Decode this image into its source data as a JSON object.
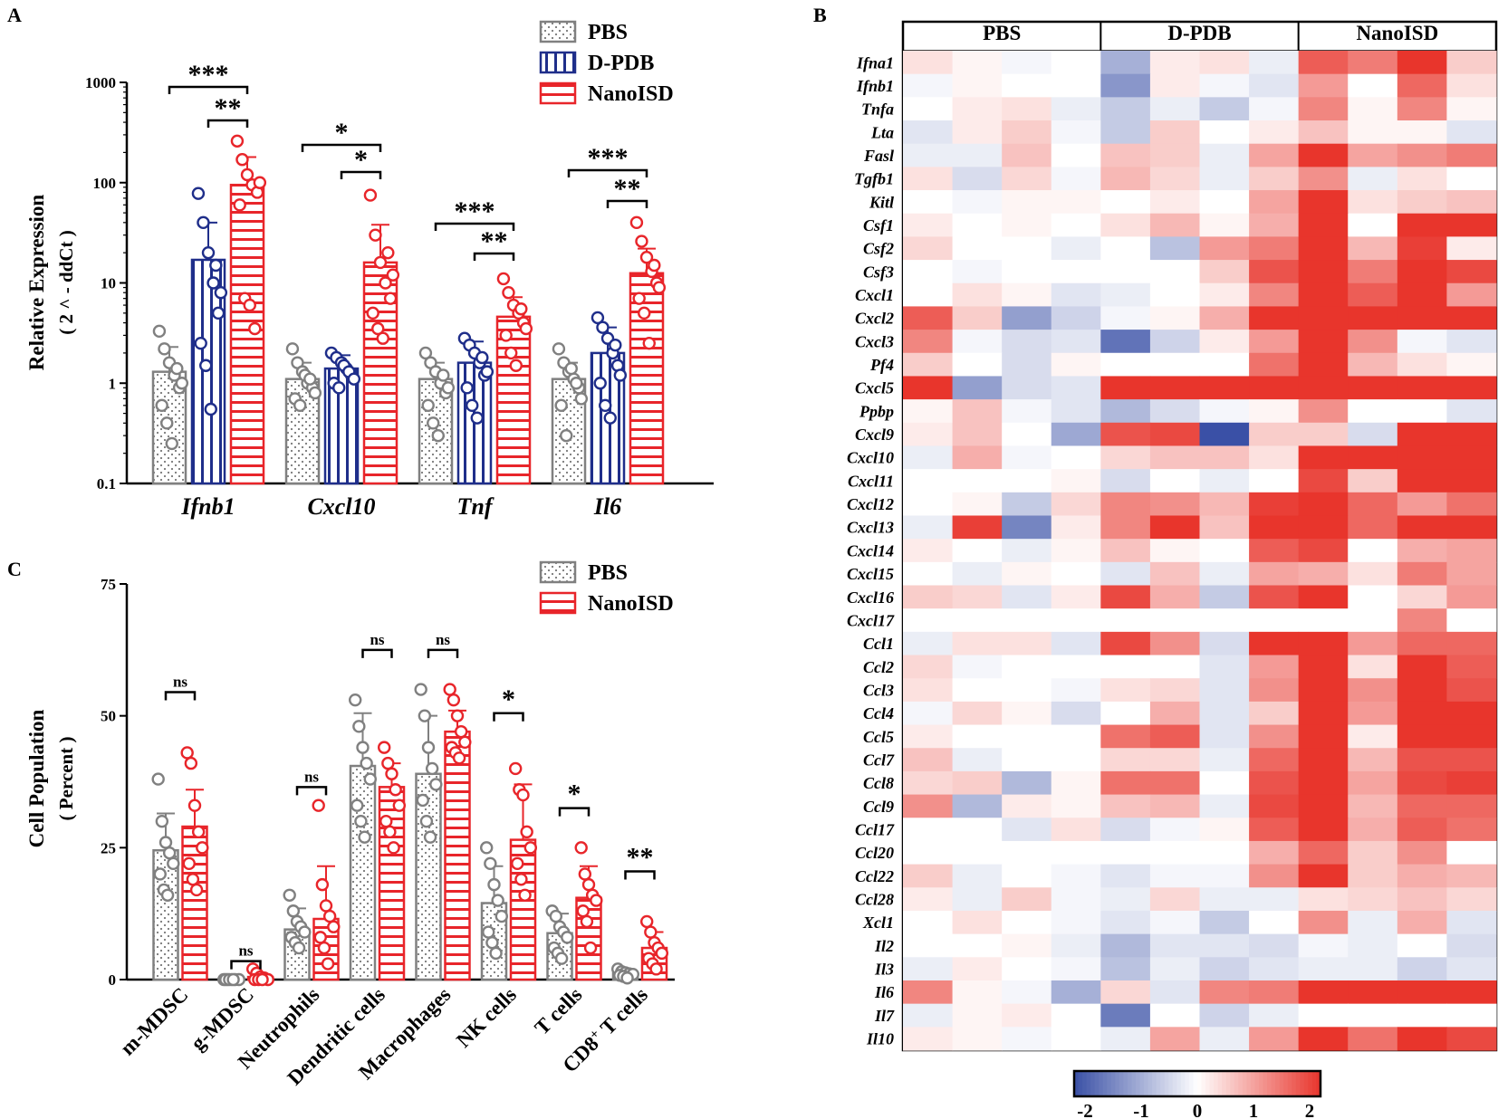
{
  "panel_labels": {
    "a": "A",
    "b": "B",
    "c": "C"
  },
  "chart_data": [
    {
      "panel": "A",
      "type": "bar",
      "scale": "log",
      "ylabel_line1": "Relative Expression",
      "ylabel_line2": "( 2 ^ - ddCt )",
      "ylim": [
        0.1,
        1000
      ],
      "yticks": [
        "0.1",
        "1",
        "10",
        "100",
        "1000"
      ],
      "yticks_values": [
        0.1,
        1,
        10,
        100,
        1000
      ],
      "categories": [
        "Ifnb1",
        "Cxcl10",
        "Tnf",
        "Il6"
      ],
      "series": [
        {
          "name": "PBS",
          "color": "#808080",
          "pattern": "dots",
          "values": [
            1.3,
            1.1,
            1.1,
            1.1
          ],
          "err": [
            2.3,
            1.6,
            1.6,
            1.6
          ],
          "points": [
            [
              3.3,
              2.2,
              1.6,
              1.2,
              0.9,
              0.6,
              0.4,
              0.25,
              1.4,
              1.0
            ],
            [
              2.2,
              1.6,
              1.3,
              1.0,
              0.9,
              0.7,
              0.6,
              1.2,
              1.1,
              0.8
            ],
            [
              2.0,
              1.6,
              1.3,
              1.0,
              0.8,
              0.6,
              0.4,
              0.3,
              1.2,
              0.9
            ],
            [
              2.2,
              1.6,
              1.3,
              1.1,
              0.9,
              0.6,
              0.3,
              1.4,
              1.0,
              0.7
            ]
          ]
        },
        {
          "name": "D-PDB",
          "color": "#1f2e8a",
          "pattern": "vlines",
          "values": [
            17,
            1.4,
            1.6,
            2.0
          ],
          "err": [
            40,
            1.9,
            2.6,
            3.6
          ],
          "points": [
            [
              78,
              40,
              20,
              10,
              5,
              2.5,
              1.5,
              0.55,
              15,
              8
            ],
            [
              2.0,
              1.8,
              1.6,
              1.4,
              1.2,
              1.0,
              0.9,
              1.5,
              1.3,
              1.1
            ],
            [
              2.8,
              2.4,
              2.0,
              1.6,
              1.2,
              0.9,
              0.6,
              0.45,
              1.8,
              1.3
            ],
            [
              4.5,
              3.6,
              2.8,
              2.0,
              1.5,
              1.0,
              0.6,
              0.45,
              2.4,
              1.2
            ]
          ]
        },
        {
          "name": "NanoISD",
          "color": "#e8252a",
          "pattern": "hlines",
          "values": [
            95,
            16,
            4.6,
            12.5
          ],
          "err": [
            180,
            38,
            7.2,
            22
          ],
          "points": [
            [
              260,
              170,
              120,
              95,
              80,
              60,
              7,
              6,
              3.5,
              100
            ],
            [
              75,
              30,
              16,
              10,
              7,
              5,
              3.5,
              2.8,
              20,
              12
            ],
            [
              11,
              8,
              6,
              5,
              4,
              3,
              2,
              1.5,
              5.5,
              3.5
            ],
            [
              40,
              26,
              18,
              13,
              10,
              7,
              5,
              2.5,
              15,
              9
            ]
          ]
        }
      ],
      "significance": [
        {
          "category": "Ifnb1",
          "wide": "***",
          "narrow": "**"
        },
        {
          "category": "Cxcl10",
          "wide": "*",
          "narrow": "*"
        },
        {
          "category": "Tnf",
          "wide": "***",
          "narrow": "**"
        },
        {
          "category": "Il6",
          "wide": "***",
          "narrow": "**"
        }
      ],
      "legend": [
        "PBS",
        "D-PDB",
        "NanoISD"
      ],
      "legend_position": "top-right"
    },
    {
      "panel": "C",
      "type": "bar",
      "ylabel_line1": "Cell Population",
      "ylabel_line2": "( Percent )",
      "ylim": [
        0,
        75
      ],
      "yticks": [
        "0",
        "25",
        "50",
        "75"
      ],
      "yticks_values": [
        0,
        25,
        50,
        75
      ],
      "categories": [
        "m-MDSC",
        "g-MDSC",
        "Neutrophils",
        "Dendritic cells",
        "Macrophages",
        "NK cells",
        "T cells",
        "CD8"
      ],
      "category_superscript": "+",
      "category_suffix": " T cells",
      "series": [
        {
          "name": "PBS",
          "color": "#808080",
          "pattern": "dots",
          "values": [
            24.5,
            0.1,
            9.5,
            40.5,
            39,
            14.5,
            8.8,
            1.2
          ],
          "err": [
            31.5,
            0.2,
            13.5,
            50.5,
            50,
            21.5,
            12.5,
            2.0
          ],
          "points": [
            [
              38,
              30,
              26,
              24,
              22,
              20,
              17,
              16
            ],
            [
              0,
              0,
              0,
              0,
              0,
              0,
              0,
              0
            ],
            [
              16,
              13,
              11,
              10,
              9,
              8,
              7,
              6
            ],
            [
              53,
              48,
              44,
              41,
              38,
              33,
              30,
              27
            ],
            [
              55,
              50,
              44,
              40,
              37,
              34,
              30,
              27
            ],
            [
              25,
              22,
              18,
              15,
              12,
              9,
              7,
              5
            ],
            [
              13,
              12,
              10,
              9,
              8,
              6,
              5,
              4
            ],
            [
              2,
              1.5,
              1.3,
              1.1,
              1.0,
              0.8,
              0.6,
              0.3
            ]
          ]
        },
        {
          "name": "NanoISD",
          "color": "#e8252a",
          "pattern": "hlines",
          "values": [
            29,
            0.5,
            11.5,
            36.5,
            47,
            26.5,
            15.5,
            6.0
          ],
          "err": [
            36,
            1.0,
            21.5,
            41,
            51,
            37,
            21.5,
            9.0
          ],
          "points": [
            [
              43,
              41,
              33,
              28,
              25,
              22,
              19,
              17
            ],
            [
              2,
              1.2,
              0.5,
              0.3,
              0,
              0,
              0,
              0
            ],
            [
              33,
              18,
              14,
              12,
              10,
              8,
              6,
              3
            ],
            [
              44,
              41,
              39,
              36,
              33,
              30,
              28,
              25
            ],
            [
              55,
              53,
              50,
              47,
              45,
              44,
              43,
              42
            ],
            [
              40,
              36,
              35,
              28,
              25,
              22,
              19,
              16
            ],
            [
              25,
              20,
              18,
              16,
              15,
              13,
              11,
              6
            ],
            [
              11,
              9,
              7,
              6,
              5,
              4,
              3,
              2
            ]
          ]
        }
      ],
      "significance": [
        "ns",
        "ns",
        "ns",
        "ns",
        "ns",
        "*",
        "*",
        "**"
      ],
      "legend": [
        "PBS",
        "NanoISD"
      ],
      "legend_position": "top-right"
    },
    {
      "panel": "B",
      "type": "heatmap",
      "groups": [
        "PBS",
        "D-PDB",
        "NanoISD"
      ],
      "replicates_per_group": 4,
      "genes": [
        "Ifna1",
        "Ifnb1",
        "Tnfa",
        "Lta",
        "Fasl",
        "Tgfb1",
        "Kitl",
        "Csf1",
        "Csf2",
        "Csf3",
        "Cxcl1",
        "Cxcl2",
        "Cxcl3",
        "Pf4",
        "Cxcl5",
        "Ppbp",
        "Cxcl9",
        "Cxcl10",
        "Cxcl11",
        "Cxcl12",
        "Cxcl13",
        "Cxcl14",
        "Cxcl15",
        "Cxcl16",
        "Cxcl17",
        "Ccl1",
        "Ccl2",
        "Ccl3",
        "Ccl4",
        "Ccl5",
        "Ccl7",
        "Ccl8",
        "Ccl9",
        "Ccl17",
        "Ccl20",
        "Ccl22",
        "Ccl28",
        "Xcl1",
        "Il2",
        "Il3",
        "Il6",
        "Il7",
        "Il10"
      ],
      "colorbar": {
        "min": -2,
        "max": 2,
        "ticks": [
          "-2",
          "-1",
          "0",
          "1",
          "2"
        ],
        "low_color": "#3a50a6",
        "mid_color": "#ffffff",
        "high_color": "#e8352c"
      },
      "values": [
        [
          0.3,
          0.1,
          -0.1,
          0.0,
          -0.9,
          0.2,
          0.3,
          -0.2,
          1.6,
          1.3,
          2.0,
          0.5
        ],
        [
          -0.1,
          0.1,
          0.0,
          0.0,
          -1.2,
          0.2,
          -0.1,
          -0.3,
          1.0,
          0.0,
          1.5,
          0.3
        ],
        [
          0.0,
          0.2,
          0.3,
          -0.2,
          -0.6,
          -0.2,
          -0.6,
          -0.1,
          1.2,
          0.1,
          1.2,
          0.1
        ],
        [
          -0.3,
          0.2,
          0.5,
          -0.1,
          -0.6,
          0.5,
          0.0,
          0.2,
          0.6,
          0.1,
          0.1,
          -0.3
        ],
        [
          -0.2,
          -0.2,
          0.6,
          0.0,
          0.6,
          0.5,
          -0.2,
          0.9,
          2.0,
          0.9,
          1.1,
          1.3
        ],
        [
          0.3,
          -0.4,
          0.4,
          -0.1,
          0.7,
          0.4,
          -0.2,
          0.5,
          1.1,
          -0.2,
          0.3,
          0.0
        ],
        [
          0.0,
          -0.1,
          0.1,
          0.1,
          0.0,
          0.2,
          0.0,
          0.9,
          2.0,
          0.3,
          0.5,
          0.6
        ],
        [
          0.2,
          0.0,
          0.1,
          0.0,
          0.3,
          0.7,
          0.1,
          0.8,
          2.0,
          0.0,
          2.0,
          2.0
        ],
        [
          0.4,
          0.0,
          0.0,
          -0.2,
          0.0,
          -0.7,
          1.0,
          1.3,
          2.0,
          0.7,
          1.9,
          0.2
        ],
        [
          0.0,
          -0.1,
          0.0,
          0.0,
          0.0,
          0.0,
          0.5,
          1.7,
          2.0,
          1.3,
          2.0,
          1.8
        ],
        [
          0.0,
          0.3,
          0.1,
          -0.3,
          -0.2,
          0.0,
          0.2,
          1.2,
          2.0,
          1.6,
          2.0,
          1.0
        ],
        [
          1.6,
          0.5,
          -1.1,
          -0.5,
          -0.1,
          0.1,
          0.8,
          2.0,
          2.0,
          2.0,
          2.0,
          2.0
        ],
        [
          1.2,
          -0.1,
          -0.4,
          -0.3,
          -1.6,
          -0.5,
          0.2,
          1.0,
          2.0,
          1.1,
          -0.1,
          -0.3
        ],
        [
          0.5,
          0.0,
          -0.4,
          0.1,
          0.0,
          0.0,
          0.0,
          1.4,
          2.0,
          0.7,
          0.3,
          0.1
        ],
        [
          2.0,
          -1.1,
          -0.4,
          -0.3,
          2.0,
          2.0,
          2.0,
          2.0,
          2.0,
          2.0,
          2.0,
          2.0
        ],
        [
          0.1,
          0.6,
          -0.1,
          -0.3,
          -0.8,
          -0.4,
          -0.1,
          0.1,
          1.1,
          0.0,
          0.0,
          -0.3
        ],
        [
          0.2,
          0.6,
          0.0,
          -1.0,
          1.7,
          1.8,
          -2.0,
          0.5,
          0.5,
          -0.4,
          2.0,
          2.0
        ],
        [
          -0.2,
          0.8,
          -0.1,
          0.0,
          0.4,
          0.6,
          0.6,
          0.3,
          2.0,
          2.0,
          2.0,
          2.0
        ],
        [
          0.0,
          0.0,
          0.0,
          0.1,
          -0.4,
          0.0,
          -0.2,
          0.0,
          1.8,
          0.5,
          2.0,
          2.0
        ],
        [
          0.0,
          0.1,
          -0.6,
          0.4,
          1.2,
          1.1,
          0.7,
          1.9,
          2.0,
          1.5,
          1.0,
          1.4
        ],
        [
          -0.2,
          1.9,
          -1.4,
          0.2,
          1.2,
          2.0,
          0.6,
          2.0,
          2.0,
          1.5,
          2.0,
          2.0
        ],
        [
          0.2,
          0.0,
          -0.2,
          0.1,
          0.6,
          0.1,
          0.0,
          1.6,
          1.8,
          0.0,
          0.8,
          0.9
        ],
        [
          0.0,
          -0.2,
          0.1,
          0.0,
          -0.3,
          0.6,
          -0.2,
          0.9,
          0.8,
          0.3,
          1.3,
          0.9
        ],
        [
          0.5,
          0.4,
          -0.3,
          0.2,
          1.8,
          0.8,
          -0.6,
          1.7,
          2.0,
          0.0,
          0.4,
          1.0
        ],
        [
          0.0,
          0.0,
          0.0,
          0.0,
          0.0,
          0.0,
          0.0,
          0.0,
          0.0,
          0.0,
          1.2,
          0.0
        ],
        [
          -0.2,
          0.3,
          0.3,
          -0.3,
          1.8,
          1.1,
          -0.4,
          2.0,
          2.0,
          1.0,
          1.5,
          1.5
        ],
        [
          0.4,
          -0.1,
          0.0,
          0.0,
          0.0,
          0.0,
          -0.3,
          1.0,
          2.0,
          0.3,
          2.0,
          1.6
        ],
        [
          0.3,
          0.0,
          0.0,
          -0.1,
          0.3,
          0.4,
          -0.3,
          1.1,
          2.0,
          1.1,
          2.0,
          1.7
        ],
        [
          -0.1,
          0.4,
          0.1,
          -0.4,
          0.0,
          0.8,
          -0.3,
          0.5,
          2.0,
          1.0,
          2.0,
          2.0
        ],
        [
          0.2,
          0.0,
          0.0,
          0.0,
          1.4,
          1.6,
          -0.3,
          1.1,
          2.0,
          0.2,
          2.0,
          2.0
        ],
        [
          0.6,
          -0.2,
          0.0,
          0.0,
          0.4,
          0.4,
          -0.2,
          1.5,
          2.0,
          0.7,
          1.7,
          1.7
        ],
        [
          0.4,
          0.5,
          -0.8,
          0.1,
          1.4,
          1.4,
          0.0,
          1.7,
          2.0,
          0.9,
          1.8,
          1.9
        ],
        [
          1.1,
          -0.8,
          0.2,
          0.1,
          0.6,
          0.7,
          -0.2,
          1.8,
          2.0,
          0.7,
          1.5,
          1.5
        ],
        [
          0.0,
          0.0,
          -0.3,
          0.3,
          -0.4,
          -0.1,
          0.1,
          1.6,
          2.0,
          0.8,
          1.6,
          1.4
        ],
        [
          0.0,
          0.0,
          0.0,
          0.0,
          0.0,
          0.0,
          0.0,
          0.8,
          1.5,
          0.5,
          1.1,
          0.0
        ],
        [
          0.5,
          -0.2,
          0.0,
          -0.1,
          -0.3,
          -0.1,
          -0.1,
          1.1,
          2.0,
          0.5,
          0.8,
          0.7
        ],
        [
          0.2,
          -0.2,
          0.5,
          -0.1,
          -0.2,
          0.4,
          -0.2,
          -0.2,
          0.3,
          0.4,
          0.6,
          0.4
        ],
        [
          0.0,
          0.3,
          0.0,
          -0.1,
          -0.3,
          -0.1,
          -0.6,
          0.0,
          1.1,
          -0.2,
          0.8,
          -0.3
        ],
        [
          0.0,
          0.0,
          0.1,
          -0.2,
          -0.8,
          -0.3,
          -0.3,
          -0.4,
          -0.1,
          -0.2,
          0.0,
          -0.4
        ],
        [
          -0.2,
          0.2,
          0.0,
          -0.1,
          -0.7,
          -0.2,
          -0.5,
          -0.3,
          -0.2,
          -0.2,
          -0.5,
          -0.3
        ],
        [
          1.2,
          0.1,
          -0.1,
          -0.9,
          0.4,
          -0.3,
          1.2,
          1.3,
          2.0,
          2.0,
          2.0,
          2.0
        ],
        [
          -0.2,
          0.1,
          0.2,
          0.0,
          -1.5,
          0.0,
          -0.5,
          -0.2,
          0.0,
          0.0,
          0.0,
          0.0
        ],
        [
          0.2,
          0.1,
          -0.1,
          0.0,
          -0.2,
          0.9,
          -0.2,
          1.0,
          2.0,
          1.4,
          2.0,
          1.8
        ]
      ]
    }
  ]
}
